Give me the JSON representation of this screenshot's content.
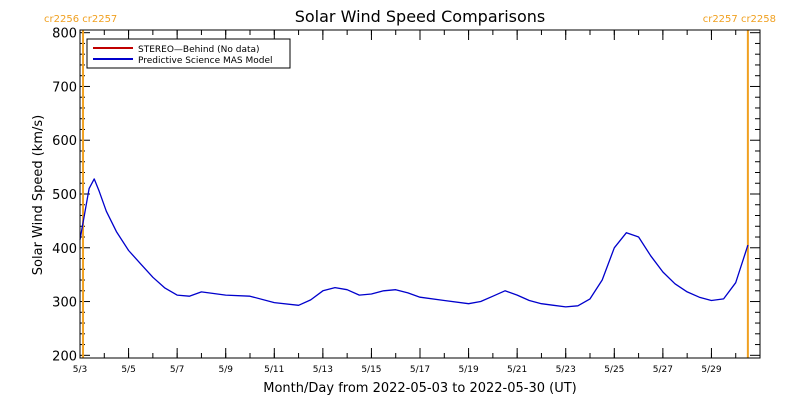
{
  "chart_data": {
    "type": "line",
    "title": "Solar Wind Speed Comparisons",
    "xlabel": "Month/Day from 2022-05-03 to 2022-05-30 (UT)",
    "ylabel": "Solar Wind Speed (km/s)",
    "ylim": [
      195,
      805
    ],
    "xlim": [
      "2022-05-03 00:00",
      "2022-05-30 23:59"
    ],
    "grid": false,
    "legend_position": "top-left",
    "y_ticks": [
      200,
      300,
      400,
      500,
      600,
      700,
      800
    ],
    "x_tick_labels": [
      "5/3",
      "5/5",
      "5/7",
      "5/9",
      "5/11",
      "5/13",
      "5/15",
      "5/17",
      "5/19",
      "5/21",
      "5/23",
      "5/25",
      "5/27",
      "5/29"
    ],
    "x_tick_dates": [
      "2022-05-03",
      "2022-05-05",
      "2022-05-07",
      "2022-05-09",
      "2022-05-11",
      "2022-05-13",
      "2022-05-15",
      "2022-05-17",
      "2022-05-19",
      "2022-05-21",
      "2022-05-23",
      "2022-05-25",
      "2022-05-27",
      "2022-05-29"
    ],
    "carrington_markers": [
      {
        "label": "cr2256 cr2257",
        "date": "2022-05-03 03:00",
        "color": "#f0a020"
      },
      {
        "label": "cr2257 cr2258",
        "date": "2022-05-30 12:00",
        "color": "#f0a020"
      }
    ],
    "series": [
      {
        "name": "STEREO—Behind (No data)",
        "color": "#c00000",
        "x": [],
        "values": []
      },
      {
        "name": "Predictive Science MAS Model",
        "color": "#0000cc",
        "x": [
          "2022-05-03 00:00",
          "2022-05-03 09:00",
          "2022-05-03 14:00",
          "2022-05-03 19:00",
          "2022-05-04 02:00",
          "2022-05-04 12:00",
          "2022-05-05 00:00",
          "2022-05-05 12:00",
          "2022-05-06 00:00",
          "2022-05-06 12:00",
          "2022-05-07 00:00",
          "2022-05-07 12:00",
          "2022-05-08 00:00",
          "2022-05-08 12:00",
          "2022-05-09 00:00",
          "2022-05-10 00:00",
          "2022-05-11 00:00",
          "2022-05-12 00:00",
          "2022-05-12 12:00",
          "2022-05-13 00:00",
          "2022-05-13 12:00",
          "2022-05-14 00:00",
          "2022-05-14 12:00",
          "2022-05-15 00:00",
          "2022-05-15 12:00",
          "2022-05-16 00:00",
          "2022-05-16 12:00",
          "2022-05-17 00:00",
          "2022-05-18 00:00",
          "2022-05-19 00:00",
          "2022-05-19 12:00",
          "2022-05-20 00:00",
          "2022-05-20 12:00",
          "2022-05-21 00:00",
          "2022-05-21 12:00",
          "2022-05-22 00:00",
          "2022-05-22 12:00",
          "2022-05-23 00:00",
          "2022-05-23 12:00",
          "2022-05-24 00:00",
          "2022-05-24 12:00",
          "2022-05-25 00:00",
          "2022-05-25 12:00",
          "2022-05-26 00:00",
          "2022-05-26 12:00",
          "2022-05-27 00:00",
          "2022-05-27 12:00",
          "2022-05-28 00:00",
          "2022-05-28 12:00",
          "2022-05-29 00:00",
          "2022-05-29 12:00",
          "2022-05-30 00:00",
          "2022-05-30 12:00"
        ],
        "values": [
          415,
          510,
          528,
          505,
          468,
          430,
          395,
          370,
          345,
          325,
          312,
          310,
          318,
          315,
          312,
          310,
          298,
          293,
          303,
          320,
          326,
          322,
          312,
          314,
          320,
          322,
          316,
          308,
          302,
          296,
          300,
          310,
          320,
          312,
          302,
          296,
          293,
          290,
          292,
          305,
          340,
          400,
          428,
          420,
          385,
          355,
          333,
          318,
          308,
          302,
          305,
          335,
          405
        ]
      }
    ]
  }
}
